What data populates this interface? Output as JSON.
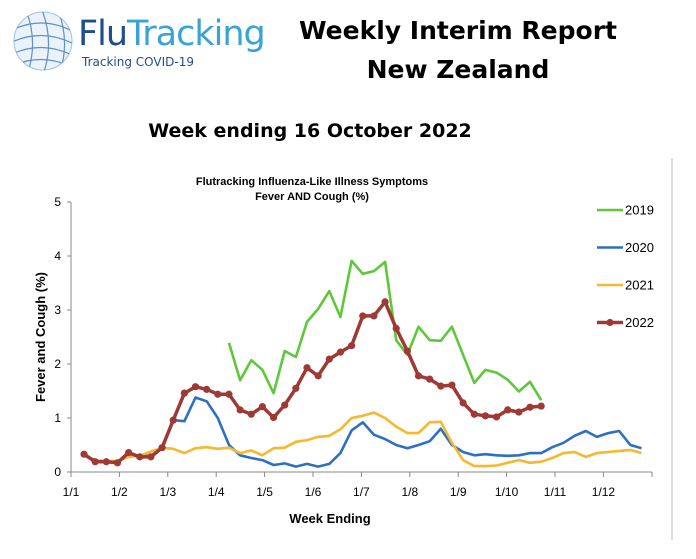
{
  "logo": {
    "name_part1": "Flu",
    "name_part2": "Tracking",
    "tagline": "Tracking COVID-19"
  },
  "header": {
    "title_line1": "Weekly Interim Report",
    "title_line2": "New Zealand",
    "week_ending": "Week ending 16 October 2022"
  },
  "chart_data": {
    "type": "line",
    "title": "Flutracking Influenza-Like Illness Symptoms",
    "subtitle": "Fever AND Cough (%)",
    "xlabel": "Week Ending",
    "ylabel": "Fever and Cough (%)",
    "ylim": [
      0,
      5
    ],
    "yticks": [
      "0",
      "1",
      "2",
      "3",
      "4",
      "5"
    ],
    "xticks": [
      "1/1",
      "1/2",
      "1/3",
      "1/4",
      "1/5",
      "1/6",
      "1/7",
      "1/8",
      "1/9",
      "1/10",
      "1/11",
      "1/12"
    ],
    "grid": false,
    "legend": "right",
    "x": [
      "2/1",
      "9/1",
      "16/1",
      "23/1",
      "30/1",
      "6/2",
      "13/2",
      "20/2",
      "27/2",
      "6/3",
      "13/3",
      "20/3",
      "27/3",
      "3/4",
      "10/4",
      "17/4",
      "24/4",
      "1/5",
      "8/5",
      "15/5",
      "22/5",
      "29/5",
      "5/6",
      "12/6",
      "19/6",
      "26/6",
      "3/7",
      "10/7",
      "17/7",
      "24/7",
      "31/7",
      "7/8",
      "14/8",
      "21/8",
      "28/8",
      "4/9",
      "11/9",
      "18/9",
      "25/9",
      "2/10",
      "9/10",
      "16/10",
      "23/10",
      "30/10",
      "6/11",
      "13/11",
      "20/11",
      "27/11",
      "4/12",
      "11/12",
      "18/12"
    ],
    "series": [
      {
        "name": "2019",
        "color": "#5ec83a",
        "markers": false,
        "values": [
          null,
          null,
          null,
          null,
          null,
          null,
          null,
          null,
          null,
          null,
          null,
          null,
          null,
          2.39,
          1.7,
          2.07,
          1.89,
          1.46,
          2.24,
          2.13,
          2.78,
          3.02,
          3.35,
          2.87,
          3.91,
          3.67,
          3.72,
          3.89,
          2.44,
          2.17,
          2.69,
          2.44,
          2.43,
          2.69,
          2.17,
          1.65,
          1.89,
          1.84,
          1.71,
          1.49,
          1.67,
          1.33,
          null,
          null,
          null,
          null,
          null,
          null,
          null,
          null,
          null
        ]
      },
      {
        "name": "2020",
        "color": "#2e6fc4",
        "markers": false,
        "values": [
          0.33,
          0.2,
          0.2,
          0.2,
          0.3,
          0.3,
          0.3,
          0.45,
          0.96,
          0.94,
          1.38,
          1.31,
          1.0,
          0.5,
          0.31,
          0.26,
          0.22,
          0.13,
          0.16,
          0.1,
          0.15,
          0.1,
          0.15,
          0.35,
          0.77,
          0.92,
          0.69,
          0.61,
          0.5,
          0.44,
          0.5,
          0.57,
          0.8,
          0.5,
          0.37,
          0.31,
          0.33,
          0.31,
          0.3,
          0.31,
          0.35,
          0.35,
          0.46,
          0.54,
          0.67,
          0.76,
          0.65,
          0.72,
          0.76,
          0.5,
          0.44
        ]
      },
      {
        "name": "2021",
        "color": "#f5b82e",
        "markers": false,
        "values": [
          0.3,
          0.22,
          0.2,
          0.2,
          0.28,
          0.3,
          0.38,
          0.45,
          0.43,
          0.35,
          0.44,
          0.46,
          0.43,
          0.45,
          0.35,
          0.4,
          0.31,
          0.44,
          0.45,
          0.56,
          0.59,
          0.65,
          0.67,
          0.79,
          1.0,
          1.04,
          1.1,
          1.0,
          0.84,
          0.72,
          0.72,
          0.92,
          0.93,
          0.54,
          0.22,
          0.11,
          0.11,
          0.12,
          0.17,
          0.22,
          0.17,
          0.19,
          0.26,
          0.35,
          0.37,
          0.28,
          0.35,
          0.37,
          0.39,
          0.41,
          0.35
        ]
      },
      {
        "name": "2022",
        "color": "#9e3a35",
        "markers": true,
        "values": [
          0.33,
          0.19,
          0.19,
          0.17,
          0.36,
          0.28,
          0.28,
          0.45,
          0.96,
          1.46,
          1.58,
          1.53,
          1.44,
          1.44,
          1.15,
          1.07,
          1.21,
          1.01,
          1.24,
          1.55,
          1.93,
          1.78,
          2.09,
          2.22,
          2.34,
          2.89,
          2.89,
          3.15,
          2.66,
          2.24,
          1.78,
          1.72,
          1.59,
          1.61,
          1.28,
          1.07,
          1.04,
          1.02,
          1.15,
          1.11,
          1.2,
          1.22,
          null,
          null,
          null,
          null,
          null,
          null,
          null,
          null,
          null
        ]
      }
    ]
  }
}
